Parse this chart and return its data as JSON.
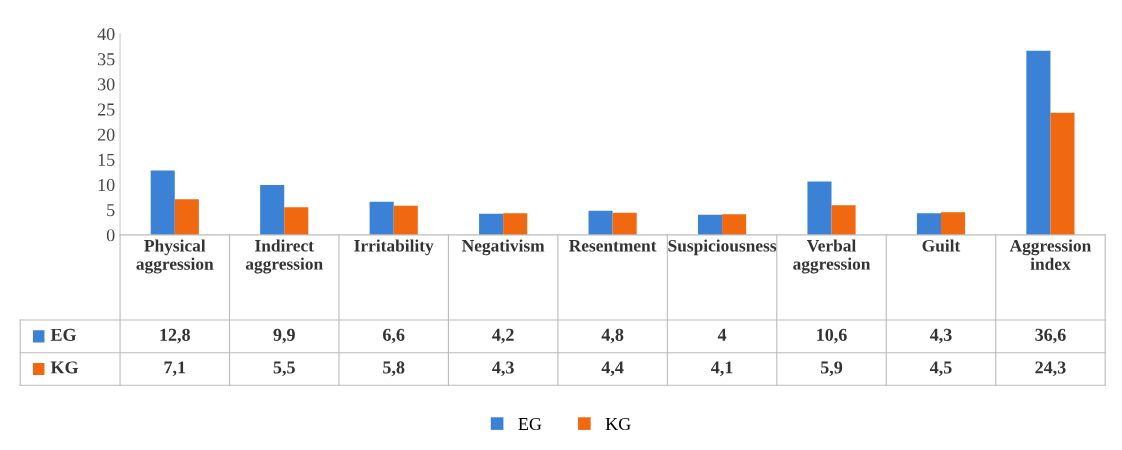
{
  "chart_data": {
    "type": "bar",
    "categories": [
      "Physical aggression",
      "Indirect aggression",
      "Irritability",
      "Negativism",
      "Resentment",
      "Suspiciousness",
      "Verbal aggression",
      "Guilt",
      "Aggression index"
    ],
    "series": [
      {
        "name": "EG",
        "color": "#3b82d6",
        "values": [
          12.8,
          9.9,
          6.6,
          4.2,
          4.8,
          4,
          10.6,
          4.3,
          36.6
        ],
        "value_labels": [
          "12,8",
          "9,9",
          "6,6",
          "4,2",
          "4,8",
          "4",
          "10,6",
          "4,3",
          "36,6"
        ]
      },
      {
        "name": "KG",
        "color": "#f0680f",
        "values": [
          7.1,
          5.5,
          5.8,
          4.3,
          4.4,
          4.1,
          5.9,
          4.5,
          24.3
        ],
        "value_labels": [
          "7,1",
          "5,5",
          "5,8",
          "4,3",
          "4,4",
          "4,1",
          "5,9",
          "4,5",
          "24,3"
        ]
      }
    ],
    "ylim": [
      0,
      40
    ],
    "yticks": [
      0,
      5,
      10,
      15,
      20,
      25,
      30,
      35,
      40
    ],
    "grid": false,
    "legend": "bottom"
  }
}
